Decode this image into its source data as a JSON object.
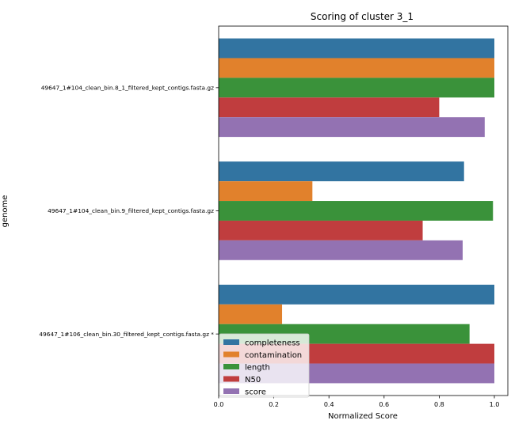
{
  "chart_data": {
    "type": "bar",
    "orientation": "horizontal",
    "title": "Scoring of cluster 3_1",
    "xlabel": "Normalized Score",
    "ylabel": "genome",
    "xlim": [
      0,
      1.0
    ],
    "xticks": [
      "0.0",
      "0.2",
      "0.4",
      "0.6",
      "0.8",
      "1.0"
    ],
    "grid": false,
    "legend_position": "lower-left",
    "categories": [
      "49647_1#104_clean_bin.8_1_filtered_kept_contigs.fasta.gz",
      "49647_1#104_clean_bin.9_filtered_kept_contigs.fasta.gz",
      "49647_1#106_clean_bin.30_filtered_kept_contigs.fasta.gz *"
    ],
    "series": [
      {
        "name": "completeness",
        "color": "#3274a1",
        "values": [
          1.0,
          0.89,
          1.0
        ]
      },
      {
        "name": "contamination",
        "color": "#e1812c",
        "values": [
          1.0,
          0.34,
          0.23
        ]
      },
      {
        "name": "length",
        "color": "#3a923a",
        "values": [
          1.0,
          0.995,
          0.91
        ]
      },
      {
        "name": "N50",
        "color": "#c03d3e",
        "values": [
          0.8,
          0.74,
          1.0
        ]
      },
      {
        "name": "score",
        "color": "#9372b2",
        "values": [
          0.965,
          0.885,
          1.0
        ]
      }
    ]
  }
}
